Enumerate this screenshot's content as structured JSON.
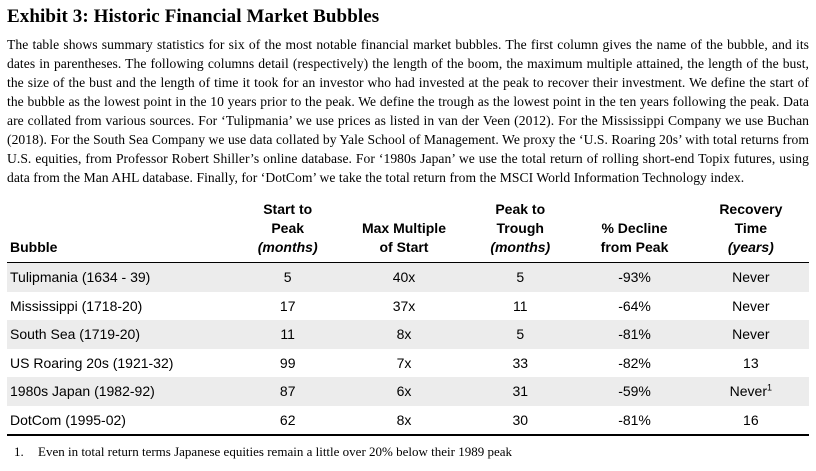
{
  "colors": {
    "text": "#000000",
    "row_shade": "#ECECEC",
    "rule": "#000000",
    "background": "#FFFFFF"
  },
  "exhibit": {
    "title": "Exhibit 3: Historic Financial Market Bubbles",
    "description": "The table shows summary statistics for six of the most notable financial market bubbles. The first column gives the name of the bubble, and its dates in parentheses. The following columns detail (respectively) the length of the boom, the maximum multiple attained, the length of the bust, the size of the bust and the length of time it took for an investor who had invested at the peak to recover their investment. We define the start of the bubble as the lowest point in the 10 years prior to the peak. We define the trough as the lowest point in the ten years following the peak. Data are collated from various sources. For ‘Tulipmania’ we use prices as listed in van der Veen (2012). For the Mississippi Company we use Buchan (2018). For the South Sea Company we use data collated by Yale School of Management. We proxy the ‘U.S. Roaring 20s’ with total returns from U.S. equities, from Professor Robert Shiller’s online database. For ‘1980s Japan’ we use the total return of rolling short-end Topix futures, using data from the Man AHL database. Finally, for ‘DotCom’ we take the total return from the MSCI World Information Technology index."
  },
  "table": {
    "columns": [
      {
        "id": "bubble",
        "lines": [
          "Bubble"
        ]
      },
      {
        "id": "start_to_peak",
        "lines": [
          "Start to",
          "Peak",
          "(months)"
        ]
      },
      {
        "id": "max_multiple_of_start",
        "lines": [
          "Max Multiple",
          "of Start"
        ]
      },
      {
        "id": "peak_to_trough",
        "lines": [
          "Peak to",
          "Trough",
          "(months)"
        ]
      },
      {
        "id": "pct_decline_from_peak",
        "lines": [
          "% Decline",
          "from Peak"
        ]
      },
      {
        "id": "recovery_time",
        "lines": [
          "Recovery",
          "Time",
          "(years)"
        ]
      }
    ],
    "rows": [
      {
        "bubble": "Tulipmania (1634 - 39)",
        "start_to_peak": "5",
        "max_multiple_of_start": "40x",
        "peak_to_trough": "5",
        "pct_decline_from_peak": "-93%",
        "recovery_time": "Never",
        "recovery_superscript": ""
      },
      {
        "bubble": "Mississippi (1718-20)",
        "start_to_peak": "17",
        "max_multiple_of_start": "37x",
        "peak_to_trough": "11",
        "pct_decline_from_peak": "-64%",
        "recovery_time": "Never",
        "recovery_superscript": ""
      },
      {
        "bubble": "South Sea (1719-20)",
        "start_to_peak": "11",
        "max_multiple_of_start": "8x",
        "peak_to_trough": "5",
        "pct_decline_from_peak": "-81%",
        "recovery_time": "Never",
        "recovery_superscript": ""
      },
      {
        "bubble": "US Roaring 20s (1921-32)",
        "start_to_peak": "99",
        "max_multiple_of_start": "7x",
        "peak_to_trough": "33",
        "pct_decline_from_peak": "-82%",
        "recovery_time": "13",
        "recovery_superscript": ""
      },
      {
        "bubble": "1980s Japan (1982-92)",
        "start_to_peak": "87",
        "max_multiple_of_start": "6x",
        "peak_to_trough": "31",
        "pct_decline_from_peak": "-59%",
        "recovery_time": "Never",
        "recovery_superscript": "1"
      },
      {
        "bubble": "DotCom (1995-02)",
        "start_to_peak": "62",
        "max_multiple_of_start": "8x",
        "peak_to_trough": "30",
        "pct_decline_from_peak": "-81%",
        "recovery_time": "16",
        "recovery_superscript": ""
      }
    ]
  },
  "footnote": {
    "marker": "1.",
    "text": "Even in total return terms Japanese equities remain a little over 20% below their 1989 peak"
  }
}
